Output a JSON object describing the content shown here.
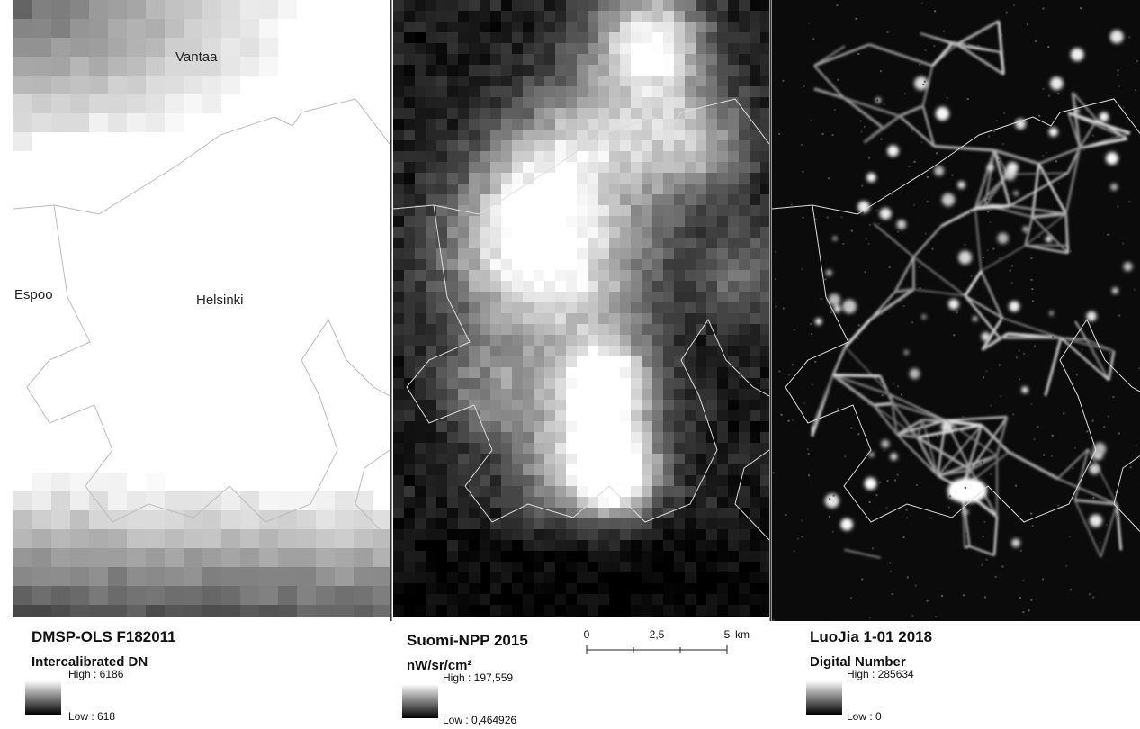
{
  "places": [
    "Vantaa",
    "Espoo",
    "Helsinki"
  ],
  "panels": [
    {
      "title": "DMSP-OLS F182011",
      "unit": "Intercalibrated DN",
      "high": "High : 6186",
      "low": "Low : 618"
    },
    {
      "title": "Suomi-NPP 2015",
      "unit": "nW/sr/cm²",
      "high": "High : 197,559",
      "low": "Low : 0,464926"
    },
    {
      "title": "LuoJia 1-01 2018",
      "unit": "Digital Number",
      "high": "High : 285634",
      "low": "Low : 0"
    }
  ],
  "scale_bar": {
    "ticks": [
      "0",
      "2,5",
      "5"
    ],
    "unit": "km"
  }
}
